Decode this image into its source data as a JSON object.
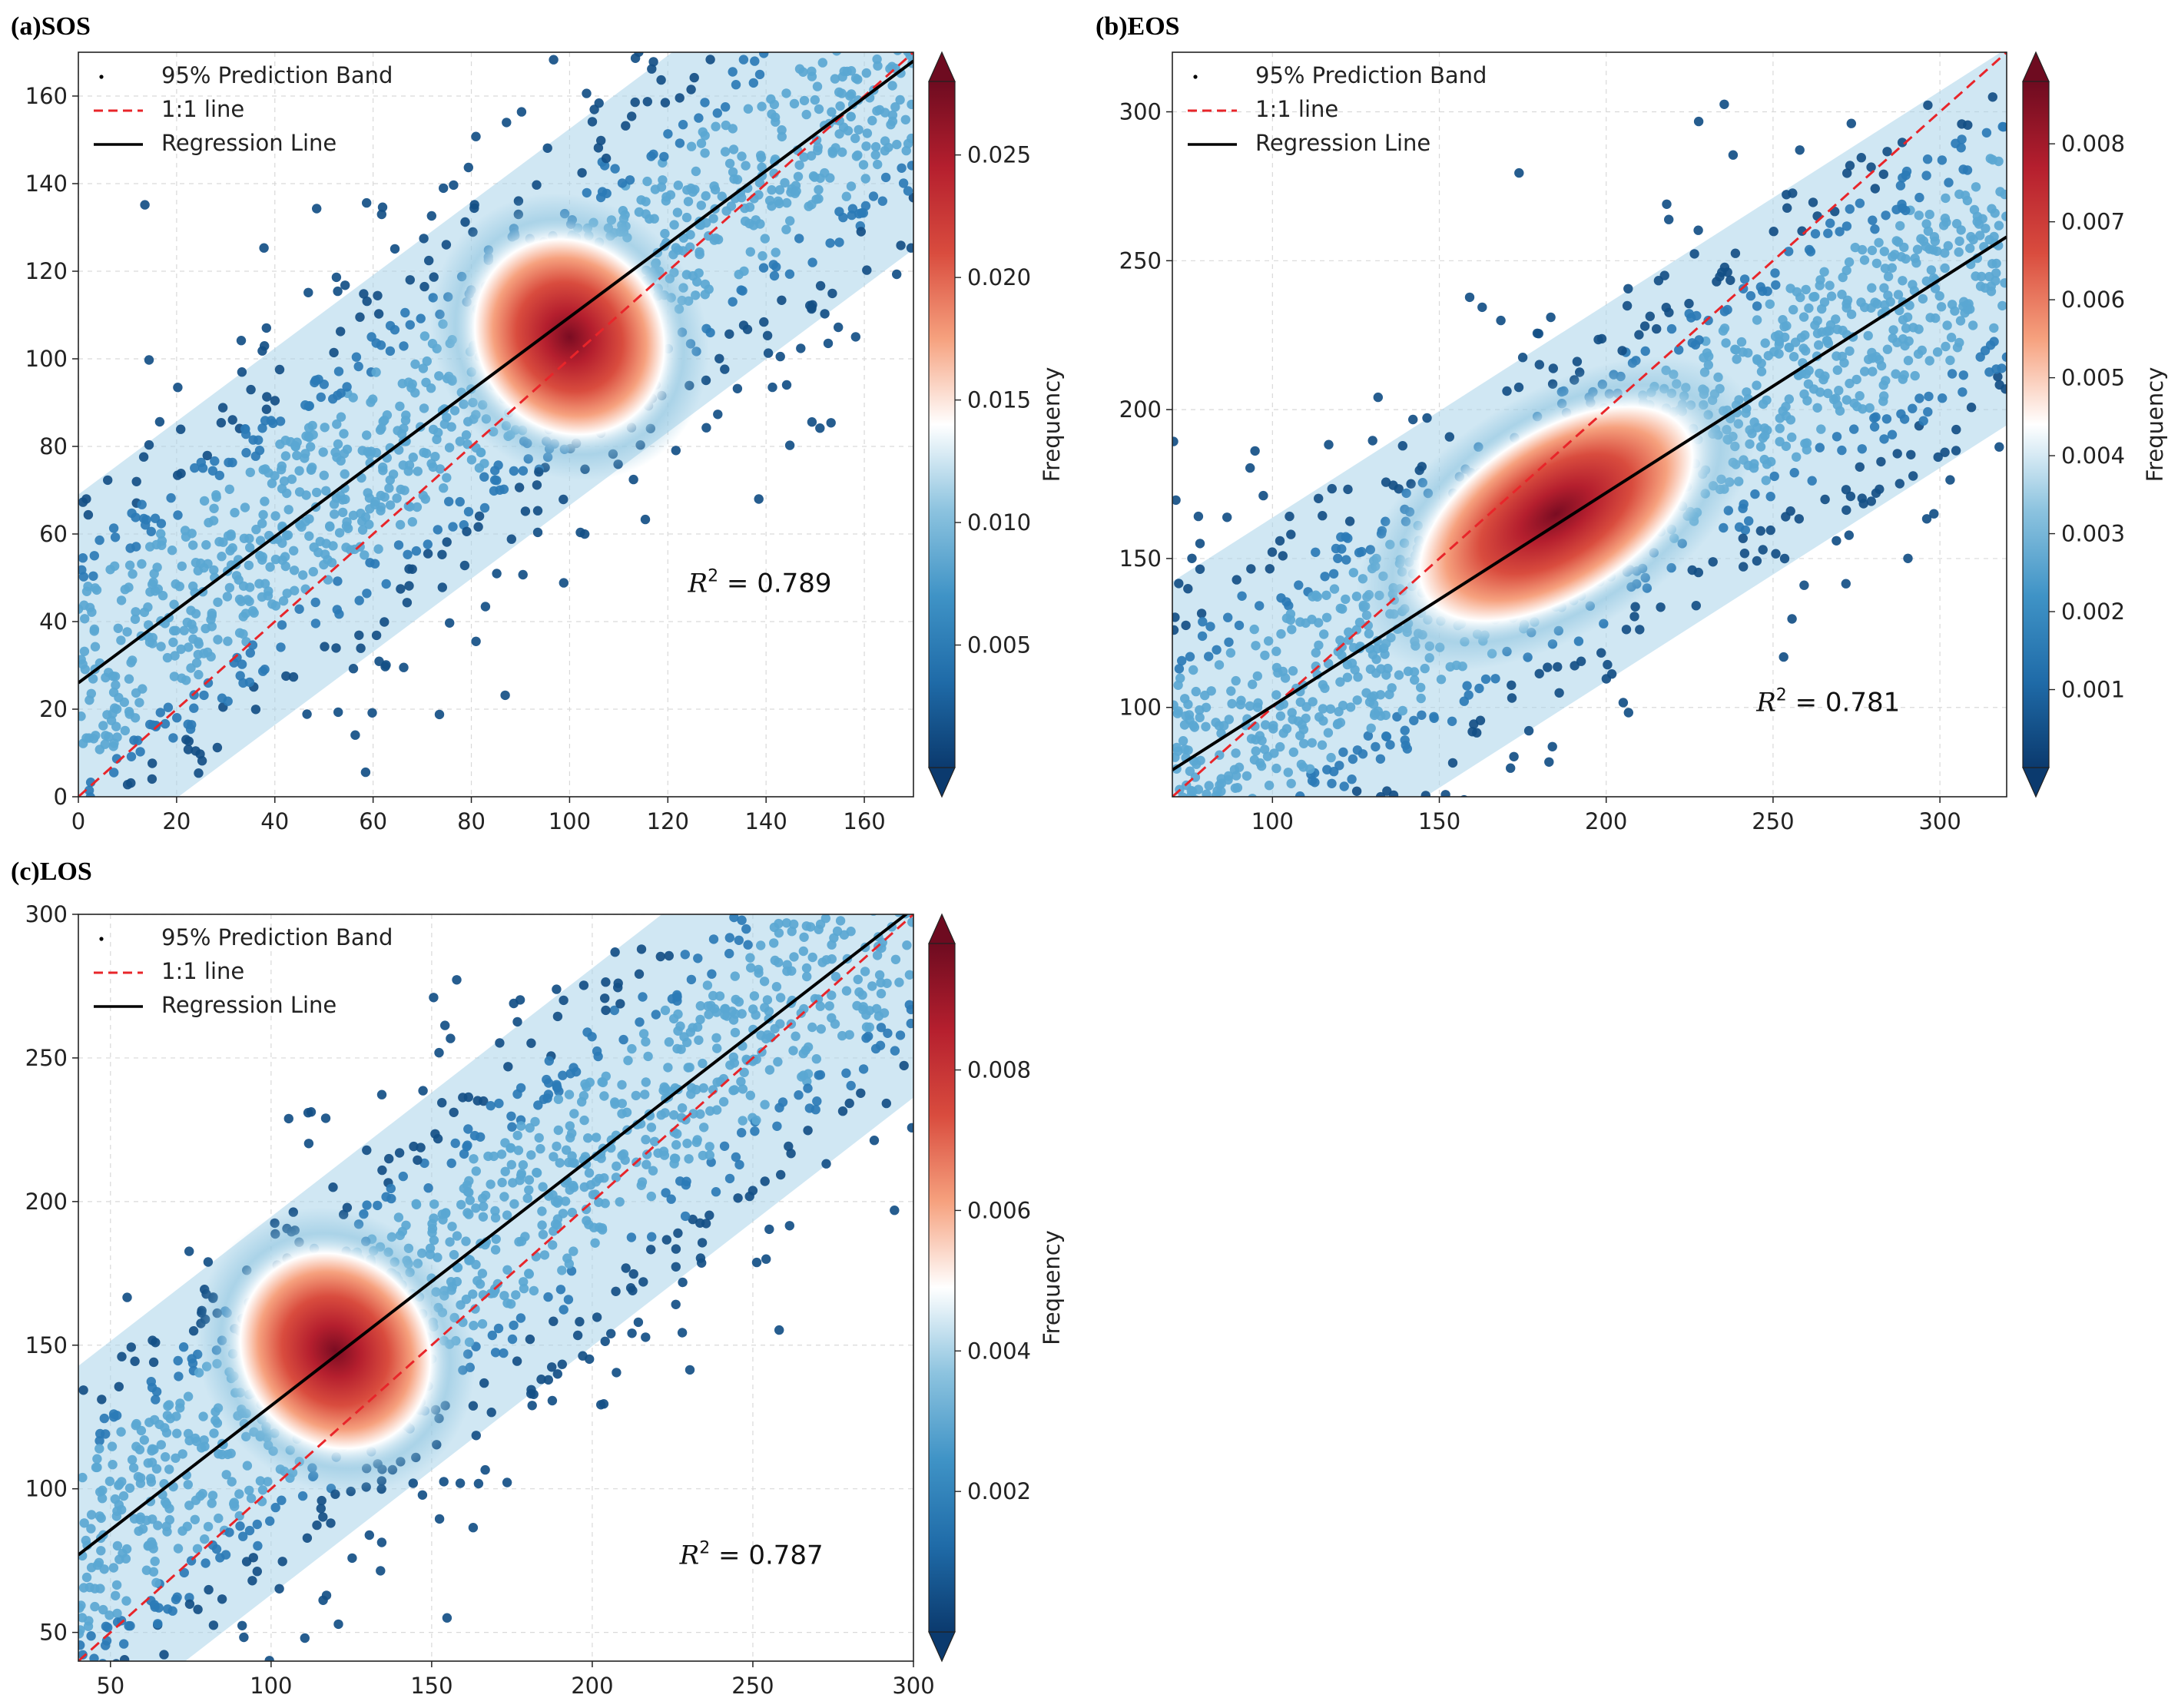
{
  "colors": {
    "colormap": [
      "#0b3a6e",
      "#1f6ba8",
      "#3f93c6",
      "#8cc3df",
      "#ffffff",
      "#f6a17e",
      "#d94c3e",
      "#b51f2e",
      "#6e0b20"
    ],
    "one_to_one_line": "#e8252a",
    "regression_line": "#000000",
    "grid": "#d9d9d9"
  },
  "chart_data": [
    {
      "panel": "(a)SOS",
      "type": "scatter",
      "title": "(a)SOS",
      "xlim": [
        0,
        170
      ],
      "ylim": [
        0,
        170
      ],
      "xticks": [
        0,
        20,
        40,
        60,
        80,
        100,
        120,
        140,
        160
      ],
      "yticks": [
        0,
        20,
        40,
        60,
        80,
        100,
        120,
        140,
        160
      ],
      "grid": true,
      "legend_placement": "top-left",
      "legend": [
        "95% Prediction Band",
        "1:1 line",
        "Regression Line"
      ],
      "one_to_one_line": {
        "x": [
          0,
          170
        ],
        "y": [
          0,
          170
        ]
      },
      "regression_line": {
        "x": [
          0,
          170
        ],
        "y": [
          26,
          168
        ]
      },
      "density_center": [
        100,
        105
      ],
      "r2_label": "0.789",
      "colorbar": {
        "label": "Frequency",
        "min": 0.0,
        "max": 0.028,
        "ticks": [
          "0.005",
          "0.010",
          "0.015",
          "0.020",
          "0.025"
        ],
        "tick_values": [
          0.005,
          0.01,
          0.015,
          0.02,
          0.025
        ]
      }
    },
    {
      "panel": "(b)EOS",
      "type": "scatter",
      "title": "(b)EOS",
      "xlim": [
        70,
        320
      ],
      "ylim": [
        70,
        320
      ],
      "xticks": [
        100,
        150,
        200,
        250,
        300
      ],
      "yticks": [
        100,
        150,
        200,
        250,
        300
      ],
      "grid": true,
      "legend_placement": "top-left",
      "legend": [
        "95% Prediction Band",
        "1:1 line",
        "Regression Line"
      ],
      "one_to_one_line": {
        "x": [
          70,
          320
        ],
        "y": [
          70,
          320
        ]
      },
      "regression_line": {
        "x": [
          70,
          320
        ],
        "y": [
          79,
          258
        ]
      },
      "density_center": [
        185,
        165
      ],
      "r2_label": "0.781",
      "colorbar": {
        "label": "Frequency",
        "min": 0.0,
        "max": 0.0088,
        "ticks": [
          "0.001",
          "0.002",
          "0.003",
          "0.004",
          "0.005",
          "0.006",
          "0.007",
          "0.008"
        ],
        "tick_values": [
          0.001,
          0.002,
          0.003,
          0.004,
          0.005,
          0.006,
          0.007,
          0.008
        ]
      }
    },
    {
      "panel": "(c)LOS",
      "type": "scatter",
      "title": "(c)LOS",
      "xlim": [
        40,
        300
      ],
      "ylim": [
        40,
        300
      ],
      "xticks": [
        50,
        100,
        150,
        200,
        250,
        300
      ],
      "yticks": [
        50,
        100,
        150,
        200,
        250,
        300
      ],
      "grid": true,
      "legend_placement": "top-left",
      "legend": [
        "95% Prediction Band",
        "1:1 line",
        "Regression Line"
      ],
      "one_to_one_line": {
        "x": [
          40,
          300
        ],
        "y": [
          40,
          300
        ]
      },
      "regression_line": {
        "x": [
          40,
          300
        ],
        "y": [
          77,
          302
        ]
      },
      "density_center": [
        120,
        148
      ],
      "r2_label": "0.787",
      "colorbar": {
        "label": "Frequency",
        "min": 0.0,
        "max": 0.0098,
        "ticks": [
          "0.002",
          "0.004",
          "0.006",
          "0.008"
        ],
        "tick_values": [
          0.002,
          0.004,
          0.006,
          0.008
        ]
      }
    }
  ]
}
